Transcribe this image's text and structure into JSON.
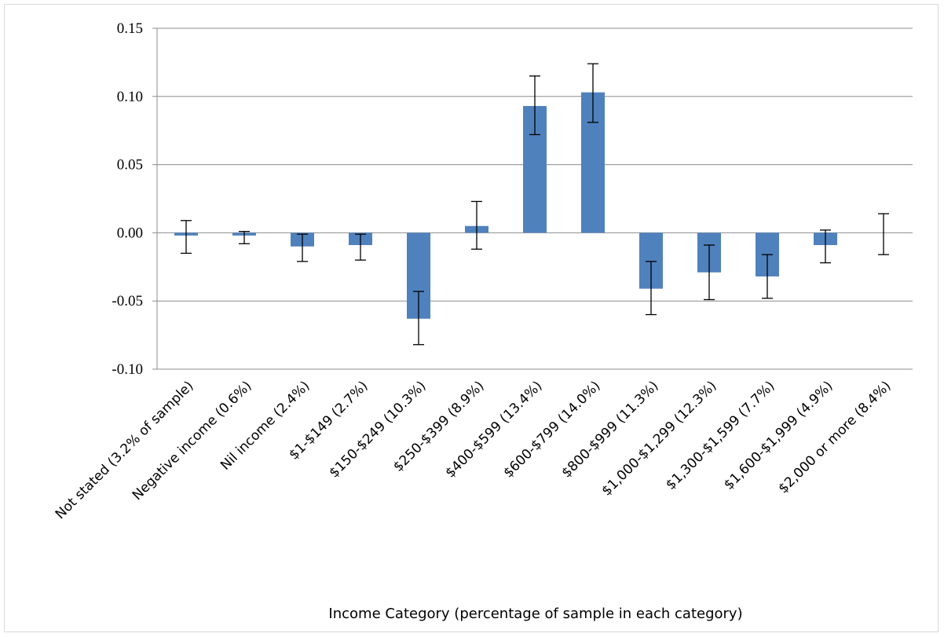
{
  "chart_data": {
    "type": "bar",
    "title": "",
    "xlabel": "Income Category (percentage of sample in each category)",
    "ylabel": "",
    "ylim": [
      -0.1,
      0.15
    ],
    "y_ticks": [
      "0.15",
      "0.10",
      "0.05",
      "0.00",
      "-0.05",
      "-0.10"
    ],
    "y_tick_values": [
      0.15,
      0.1,
      0.05,
      0.0,
      -0.05,
      -0.1
    ],
    "grid": true,
    "legend": "none",
    "bar_color": "#4f81bd",
    "categories": [
      "Not stated (3.2% of sample)",
      "Negative income (0.6%)",
      "Nil income (2.4%)",
      "$1-$149 (2.7%)",
      "$150-$249 (10.3%)",
      "$250-$399 (8.9%)",
      "$400-$599 (13.4%)",
      "$600-$799 (14.0%)",
      "$800-$999 (11.3%)",
      "$1,000-$1,299 (12.3%)",
      "$1,300-$1,599 (7.7%)",
      "$1,600-$1,999 (4.9%)",
      "$2,000 or more (8.4%)"
    ],
    "values": [
      -0.002,
      -0.002,
      -0.01,
      -0.009,
      -0.063,
      0.005,
      0.093,
      0.103,
      -0.041,
      -0.029,
      -0.032,
      -0.009,
      0.0
    ],
    "error_low": [
      -0.015,
      -0.008,
      -0.021,
      -0.02,
      -0.082,
      -0.012,
      0.072,
      0.081,
      -0.06,
      -0.049,
      -0.048,
      -0.022,
      -0.016
    ],
    "error_high": [
      0.009,
      0.001,
      -0.001,
      -0.001,
      -0.043,
      0.023,
      0.115,
      0.124,
      -0.021,
      -0.009,
      -0.016,
      0.002,
      0.014
    ]
  }
}
